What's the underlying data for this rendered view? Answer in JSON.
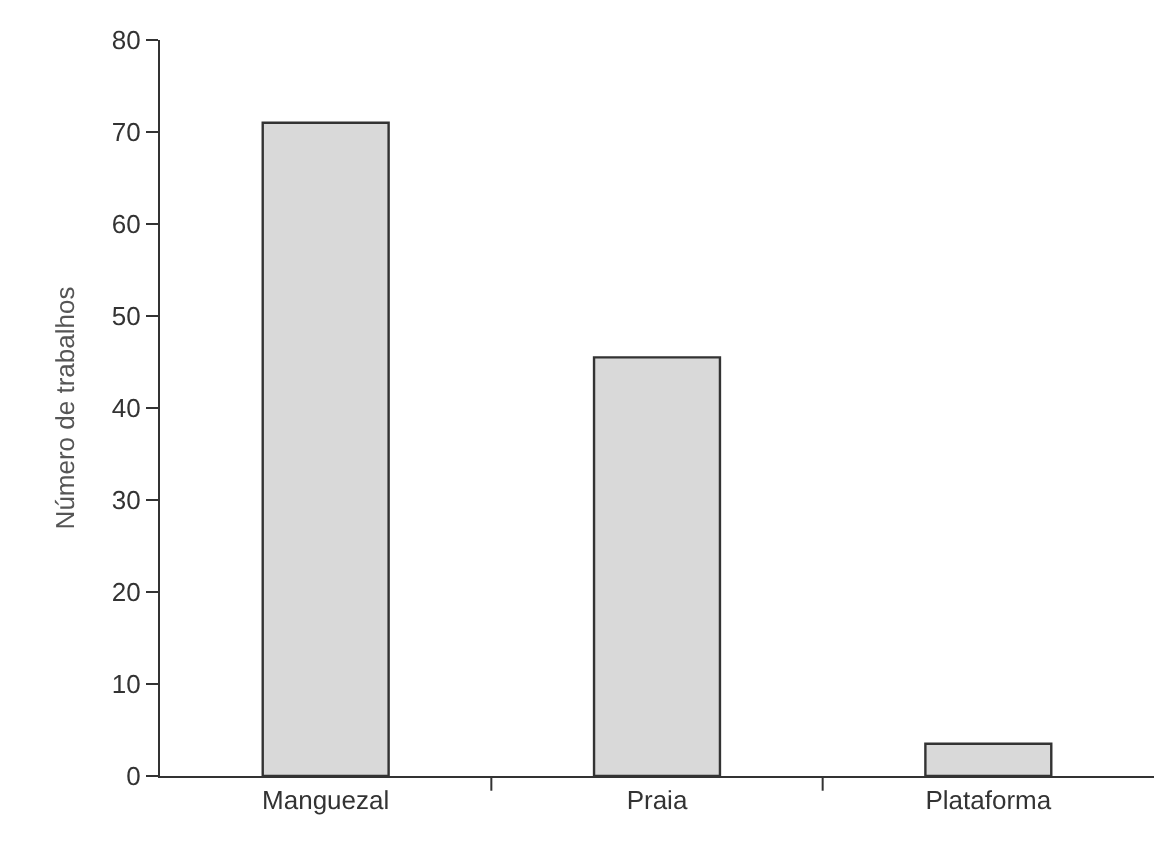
{
  "chart_data": {
    "type": "bar",
    "ylabel": "Número de trabalhos",
    "categories": [
      "Manguezal",
      "Praia",
      "Plataforma"
    ],
    "series": [
      {
        "color": "#d9d9d9",
        "values": [
          71,
          45.5,
          3.5
        ]
      }
    ],
    "ylim": [
      0,
      80
    ],
    "yticks": [
      0,
      10,
      20,
      30,
      40,
      50,
      60,
      70,
      80
    ]
  }
}
